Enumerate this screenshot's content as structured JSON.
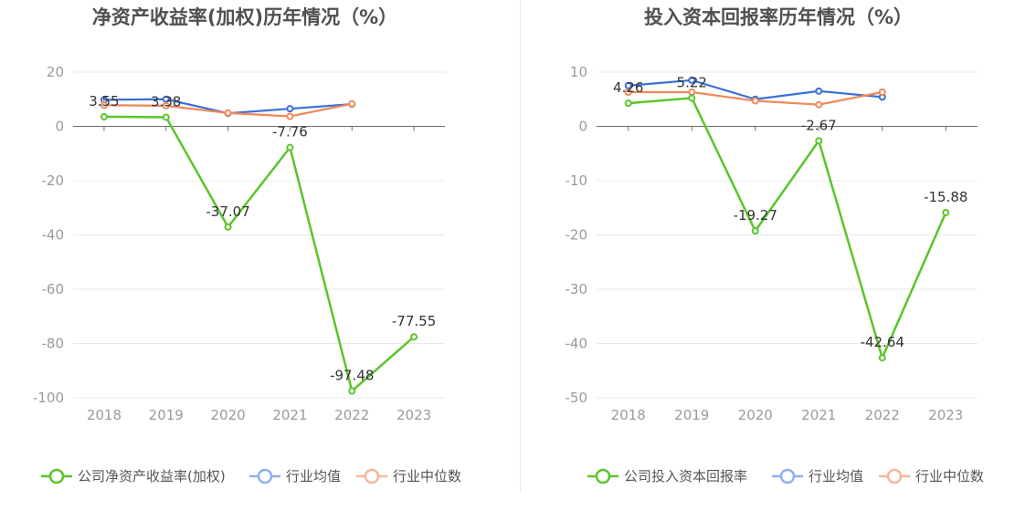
{
  "charts": [
    {
      "title": "净资产收益率(加权)历年情况（%）",
      "chart_data": {
        "type": "line",
        "title": "净资产收益率(加权)历年情况（%）",
        "categories": [
          "2018",
          "2019",
          "2020",
          "2021",
          "2022",
          "2023"
        ],
        "ylim": [
          -100,
          20
        ],
        "yticks": [
          20,
          0,
          -20,
          -40,
          -60,
          -80,
          -100
        ],
        "ytick_labels": [
          "20",
          "0",
          "-20",
          "-40",
          "-60",
          "-80",
          "-100"
        ],
        "series": [
          {
            "name": "公司净资产收益率(加权)",
            "color": "#5ac52a",
            "values": [
              3.55,
              3.38,
              -37.07,
              -7.76,
              -97.48,
              -77.55
            ],
            "labels": [
              "3.55",
              "3.38",
              "-37.07",
              "-7.76",
              "-97.48",
              "-77.55"
            ]
          },
          {
            "name": "行业均值",
            "color": "#3a6fd8",
            "values": [
              9.8,
              10.0,
              4.8,
              6.5,
              8.2,
              null
            ]
          },
          {
            "name": "行业中位数",
            "color": "#f0875a",
            "values": [
              7.8,
              7.6,
              4.9,
              3.7,
              8.3,
              null
            ]
          }
        ],
        "legend": [
          "公司净资产收益率(加权)",
          "行业均值",
          "行业中位数"
        ],
        "legend_position": "bottom",
        "grid": true
      }
    },
    {
      "title": "投入资本回报率历年情况（%）",
      "chart_data": {
        "type": "line",
        "title": "投入资本回报率历年情况（%）",
        "categories": [
          "2018",
          "2019",
          "2020",
          "2021",
          "2022",
          "2023"
        ],
        "ylim": [
          -50,
          10
        ],
        "yticks": [
          10,
          0,
          -10,
          -20,
          -30,
          -40,
          -50
        ],
        "ytick_labels": [
          "10",
          "0",
          "-10",
          "-20",
          "-30",
          "-40",
          "-50"
        ],
        "series": [
          {
            "name": "公司投入资本回报率",
            "color": "#5ac52a",
            "values": [
              4.26,
              5.22,
              -19.27,
              -2.67,
              -42.64,
              -15.88
            ],
            "labels": [
              "4.26",
              "5.22",
              "-19.27",
              "-2.67",
              "-42.64",
              "-15.88"
            ]
          },
          {
            "name": "行业均值",
            "color": "#3a6fd8",
            "values": [
              7.5,
              8.5,
              5.0,
              6.5,
              5.4,
              null
            ]
          },
          {
            "name": "行业中位数",
            "color": "#f0875a",
            "values": [
              6.3,
              6.3,
              4.7,
              4.0,
              6.3,
              null
            ]
          }
        ],
        "legend": [
          "公司投入资本回报率",
          "行业均值",
          "行业中位数"
        ],
        "legend_position": "bottom",
        "grid": true
      }
    }
  ]
}
